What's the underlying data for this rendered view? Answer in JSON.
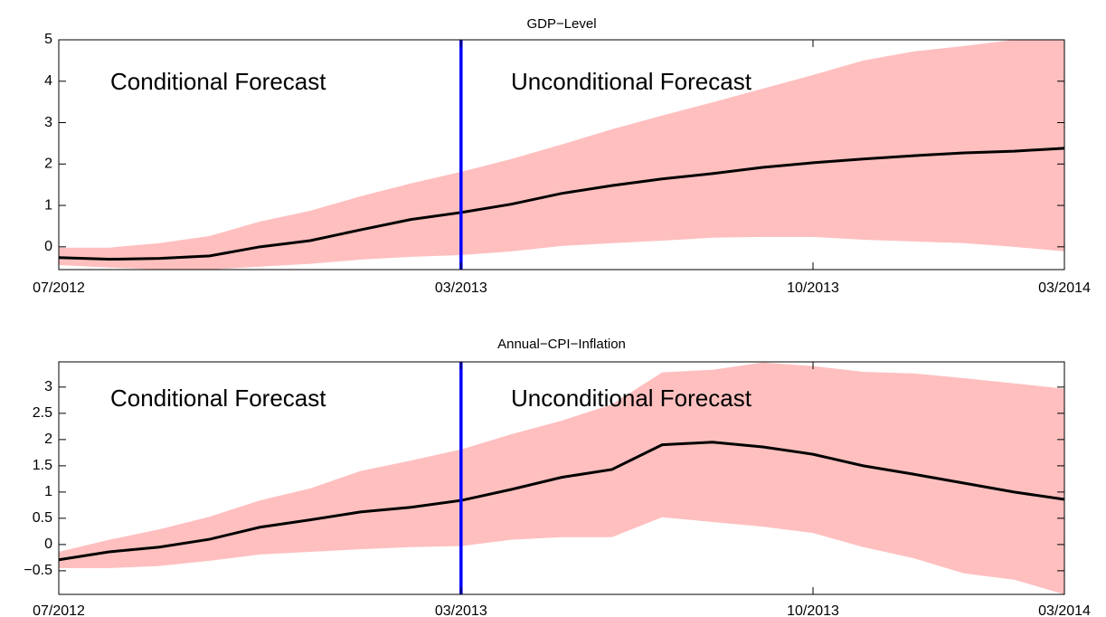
{
  "chart_data": [
    {
      "type": "line",
      "title": "GDP−Level",
      "categories": [
        "07/2012",
        null,
        null,
        null,
        null,
        null,
        null,
        null,
        "03/2013",
        null,
        null,
        null,
        null,
        null,
        null,
        "10/2013",
        null,
        null,
        null,
        null,
        "03/2014"
      ],
      "values": [
        -0.26,
        -0.3,
        -0.28,
        -0.22,
        0,
        0.15,
        0.41,
        0.66,
        0.83,
        1.03,
        1.29,
        1.48,
        1.64,
        1.77,
        1.92,
        2.03,
        2.12,
        2.2,
        2.27,
        2.31,
        2.38
      ],
      "upper": [
        -0.02,
        -0.02,
        0.09,
        0.26,
        0.61,
        0.87,
        1.22,
        1.53,
        1.81,
        2.12,
        2.47,
        2.84,
        3.17,
        3.49,
        3.82,
        4.15,
        4.5,
        4.72,
        4.85,
        5,
        5
      ],
      "lower": [
        -0.44,
        -0.5,
        -0.55,
        -0.55,
        -0.48,
        -0.41,
        -0.31,
        -0.24,
        -0.2,
        -0.11,
        0.02,
        0.09,
        0.15,
        0.22,
        0.24,
        0.24,
        0.17,
        0.13,
        0.09,
        0,
        -0.11
      ],
      "color": "#000000",
      "band_color": "#ffbfbf",
      "divider_at": "03/2013",
      "divider_color": "#0000ff",
      "annotations": [
        "Conditional Forecast",
        "Unconditional Forecast"
      ],
      "ylim": [
        -0.55,
        5
      ],
      "yticks": [
        0,
        1,
        2,
        3,
        4,
        5
      ]
    },
    {
      "type": "line",
      "title": "Annual−CPI−Inflation",
      "categories": [
        "07/2012",
        null,
        null,
        null,
        null,
        null,
        null,
        null,
        "03/2013",
        null,
        null,
        null,
        null,
        null,
        null,
        "10/2013",
        null,
        null,
        null,
        null,
        "03/2014"
      ],
      "values": [
        -0.29,
        -0.14,
        -0.05,
        0.1,
        0.33,
        0.47,
        0.62,
        0.71,
        0.84,
        1.05,
        1.28,
        1.43,
        1.9,
        1.95,
        1.86,
        1.72,
        1.5,
        1.34,
        1.17,
        1.0,
        0.86
      ],
      "upper": [
        -0.14,
        0.09,
        0.29,
        0.53,
        0.84,
        1.07,
        1.4,
        1.6,
        1.81,
        2.1,
        2.36,
        2.67,
        3.28,
        3.33,
        3.47,
        3.4,
        3.29,
        3.26,
        3.17,
        3.07,
        2.97
      ],
      "lower": [
        -0.45,
        -0.45,
        -0.41,
        -0.31,
        -0.19,
        -0.14,
        -0.09,
        -0.05,
        -0.03,
        0.09,
        0.14,
        0.14,
        0.52,
        0.43,
        0.34,
        0.22,
        -0.05,
        -0.26,
        -0.55,
        -0.67,
        -0.95
      ],
      "color": "#000000",
      "band_color": "#ffbfbf",
      "divider_at": "03/2013",
      "divider_color": "#0000ff",
      "annotations": [
        "Conditional Forecast",
        "Unconditional Forecast"
      ],
      "ylim": [
        -0.95,
        3.48
      ],
      "yticks": [
        {
          "value": -0.5,
          "label": "−0.5"
        },
        0,
        0.5,
        1,
        1.5,
        2,
        2.5,
        3
      ]
    }
  ]
}
